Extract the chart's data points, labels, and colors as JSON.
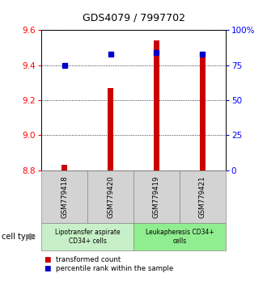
{
  "title": "GDS4079 / 7997702",
  "samples": [
    "GSM779418",
    "GSM779420",
    "GSM779419",
    "GSM779421"
  ],
  "transformed_counts": [
    8.83,
    9.27,
    9.54,
    9.47
  ],
  "percentile_ranks": [
    75,
    83,
    84,
    83
  ],
  "ylim_left": [
    8.8,
    9.6
  ],
  "ylim_right": [
    0,
    100
  ],
  "yticks_left": [
    8.8,
    9.0,
    9.2,
    9.4,
    9.6
  ],
  "yticks_right": [
    0,
    25,
    50,
    75,
    100
  ],
  "ytick_labels_right": [
    "0",
    "25",
    "50",
    "75",
    "100%"
  ],
  "bar_color": "#cc0000",
  "dot_color": "#0000cc",
  "dot_size": 18,
  "group_colors": [
    "#c8f0c8",
    "#90ee90"
  ],
  "cell_type_label": "cell type",
  "legend_bar_label": "transformed count",
  "legend_dot_label": "percentile rank within the sample",
  "background_color": "#ffffff",
  "sample_box_color": "#d3d3d3"
}
